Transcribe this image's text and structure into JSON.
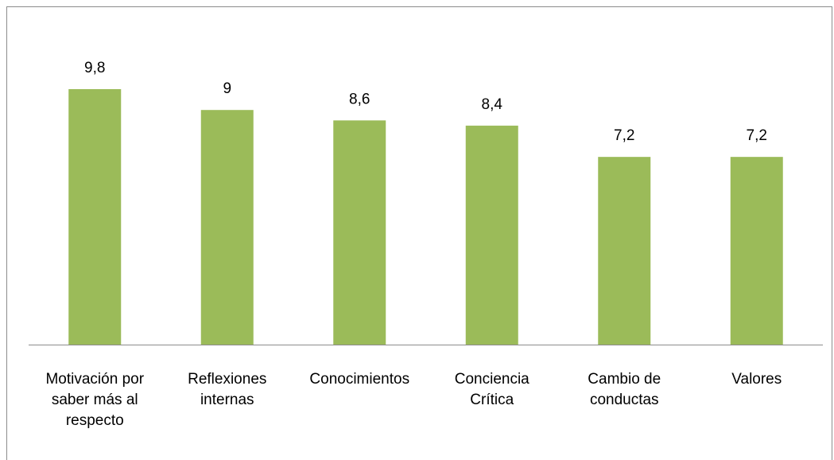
{
  "chart_data": {
    "type": "bar",
    "categories": [
      "Motivación por saber más al respecto",
      "Reflexiones internas",
      "Conocimientos",
      "Conciencia Crítica",
      "Cambio de conductas",
      "Valores"
    ],
    "values": [
      9.8,
      9,
      8.6,
      8.4,
      7.2,
      7.2
    ],
    "value_labels": [
      "9,8",
      "9",
      "8,6",
      "8,4",
      "7,2",
      "7,2"
    ],
    "color": "#9bbb59"
  }
}
